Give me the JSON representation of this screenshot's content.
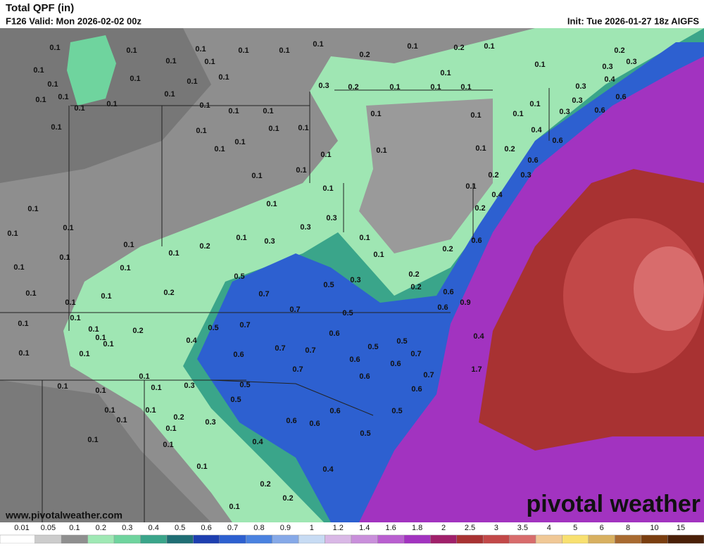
{
  "header": {
    "title": "Total QPF (in)",
    "valid": "F126 Valid: Mon 2026-02-02 00z",
    "init": "Init: Tue 2026-01-27 18z AIGFS"
  },
  "map": {
    "labels": [
      "0.1",
      "0.1",
      "0.1",
      "0.1",
      "0.1",
      "0.1",
      "0.2",
      "0.1",
      "0.2",
      "0.1",
      "0.2",
      "0.3",
      "0.1",
      "0.1",
      "0.1",
      "0.1",
      "0.1",
      "0.1",
      "0.1",
      "0.3",
      "0.2",
      "0.1",
      "0.1",
      "0.1",
      "0.1",
      "0.1",
      "0.3",
      "0.4",
      "0.3",
      "0.3",
      "0.6",
      "0.1",
      "0.1",
      "0.1",
      "0.1",
      "0.1",
      "0.1",
      "0.1",
      "0.1",
      "0.1",
      "0.1",
      "0.1",
      "0.1",
      "0.3",
      "0.6",
      "0.1",
      "0.1",
      "0.1",
      "0.1",
      "0.4",
      "0.6",
      "0.1",
      "0.1",
      "0.1",
      "0.1",
      "0.1",
      "0.2",
      "0.6",
      "0.1",
      "0.1",
      "0.2",
      "0.3",
      "0.1",
      "0.1",
      "0.4",
      "0.1",
      "0.1",
      "0.1",
      "0.1",
      "0.3",
      "0.3",
      "0.2",
      "0.1",
      "0.1",
      "0.2",
      "0.6",
      "0.1",
      "0.3",
      "0.2",
      "0.1",
      "0.1",
      "0.1",
      "0.1",
      "0.1",
      "0.5",
      "0.5",
      "0.3",
      "0.2",
      "0.2",
      "0.6",
      "0.9",
      "0.1",
      "0.1",
      "0.1",
      "0.2",
      "0.7",
      "0.7",
      "0.5",
      "0.6",
      "0.1",
      "0.1",
      "0.1",
      "0.2",
      "0.5",
      "0.7",
      "0.6",
      "0.5",
      "0.4",
      "0.1",
      "0.1",
      "0.4",
      "0.7",
      "0.7",
      "0.5",
      "0.7",
      "0.1",
      "0.1",
      "0.6",
      "0.6",
      "0.6",
      "0.7",
      "0.6",
      "0.7",
      "1.7",
      "0.1",
      "0.1",
      "0.1",
      "0.1",
      "0.3",
      "0.5",
      "0.6",
      "0.5",
      "0.1",
      "0.1",
      "0.2",
      "0.6",
      "0.5",
      "0.1",
      "0.3",
      "0.6",
      "0.6",
      "0.1",
      "0.1",
      "0.1",
      "0.4",
      "0.5",
      "0.1",
      "0.4",
      "0.2",
      "0.1",
      "0.2"
    ]
  },
  "footer": {
    "website": "www.pivotalweather.com",
    "logo": "pivotal weather"
  },
  "colorbar": {
    "labels": [
      "0.01",
      "0.05",
      "0.1",
      "0.2",
      "0.3",
      "0.4",
      "0.5",
      "0.6",
      "0.7",
      "0.8",
      "0.9",
      "1",
      "1.2",
      "1.4",
      "1.6",
      "1.8",
      "2",
      "2.5",
      "3",
      "3.5",
      "4",
      "5",
      "6",
      "8",
      "10",
      "15"
    ],
    "colors": [
      "#ffffff",
      "#cccccc",
      "#8f8f8f",
      "#9fe8b4",
      "#6fd49e",
      "#3aa58a",
      "#1f6e74",
      "#1e3fb0",
      "#2d60d0",
      "#4a82e0",
      "#86a9e8",
      "#c7dbf3",
      "#d9b8e6",
      "#c98fdb",
      "#b95fd0",
      "#a233c0",
      "#a0206a",
      "#a83232",
      "#c24848",
      "#d86c6c",
      "#f0c896",
      "#f8e070",
      "#d8b060",
      "#a86a30",
      "#7a3e10",
      "#4a2008"
    ]
  }
}
